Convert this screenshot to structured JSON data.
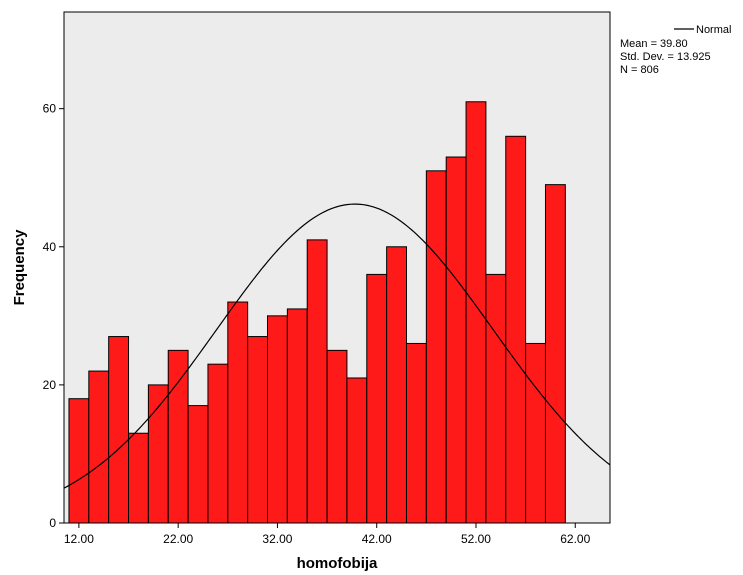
{
  "chart_data": {
    "type": "bar",
    "subtype": "histogram",
    "title": "",
    "xlabel": "homofobija",
    "ylabel": "Frequency",
    "bin_width": 2,
    "x_range": [
      10.5,
      65.5
    ],
    "ylim": [
      0,
      74
    ],
    "x_ticks": [
      {
        "value": 12,
        "label": "12.00"
      },
      {
        "value": 22,
        "label": "22.00"
      },
      {
        "value": 32,
        "label": "32.00"
      },
      {
        "value": 42,
        "label": "42.00"
      },
      {
        "value": 52,
        "label": "52.00"
      },
      {
        "value": 62,
        "label": "62.00"
      }
    ],
    "y_ticks": [
      {
        "value": 0,
        "label": "0"
      },
      {
        "value": 20,
        "label": "20"
      },
      {
        "value": 40,
        "label": "40"
      },
      {
        "value": 60,
        "label": "60"
      }
    ],
    "bins": [
      {
        "start": 11,
        "end": 13,
        "value": 18
      },
      {
        "start": 13,
        "end": 15,
        "value": 22
      },
      {
        "start": 15,
        "end": 17,
        "value": 27
      },
      {
        "start": 17,
        "end": 19,
        "value": 13
      },
      {
        "start": 19,
        "end": 21,
        "value": 20
      },
      {
        "start": 21,
        "end": 23,
        "value": 25
      },
      {
        "start": 23,
        "end": 25,
        "value": 17
      },
      {
        "start": 25,
        "end": 27,
        "value": 23
      },
      {
        "start": 27,
        "end": 29,
        "value": 32
      },
      {
        "start": 29,
        "end": 31,
        "value": 27
      },
      {
        "start": 31,
        "end": 33,
        "value": 30
      },
      {
        "start": 33,
        "end": 35,
        "value": 31
      },
      {
        "start": 35,
        "end": 37,
        "value": 41
      },
      {
        "start": 37,
        "end": 39,
        "value": 25
      },
      {
        "start": 39,
        "end": 41,
        "value": 21
      },
      {
        "start": 41,
        "end": 43,
        "value": 36
      },
      {
        "start": 43,
        "end": 45,
        "value": 40
      },
      {
        "start": 45,
        "end": 47,
        "value": 26
      },
      {
        "start": 47,
        "end": 49,
        "value": 51
      },
      {
        "start": 49,
        "end": 51,
        "value": 53
      },
      {
        "start": 51,
        "end": 53,
        "value": 61
      },
      {
        "start": 53,
        "end": 55,
        "value": 36
      },
      {
        "start": 55,
        "end": 57,
        "value": 56
      },
      {
        "start": 57,
        "end": 59,
        "value": 26
      },
      {
        "start": 59,
        "end": 61,
        "value": 49
      }
    ],
    "normal_curve": {
      "mean": 39.8,
      "std_dev": 13.925,
      "n": 806
    },
    "legend": {
      "placement": "top-right",
      "curve_label": "Normal",
      "mean_text": "Mean = 39.80",
      "std_text": "Std. Dev. = 13.925",
      "n_text": "N = 806"
    },
    "grid": false,
    "colors": {
      "bar_fill": "#ff1a1a",
      "bar_stroke": "#000000",
      "plot_background": "#ececec",
      "curve": "#000000"
    }
  }
}
